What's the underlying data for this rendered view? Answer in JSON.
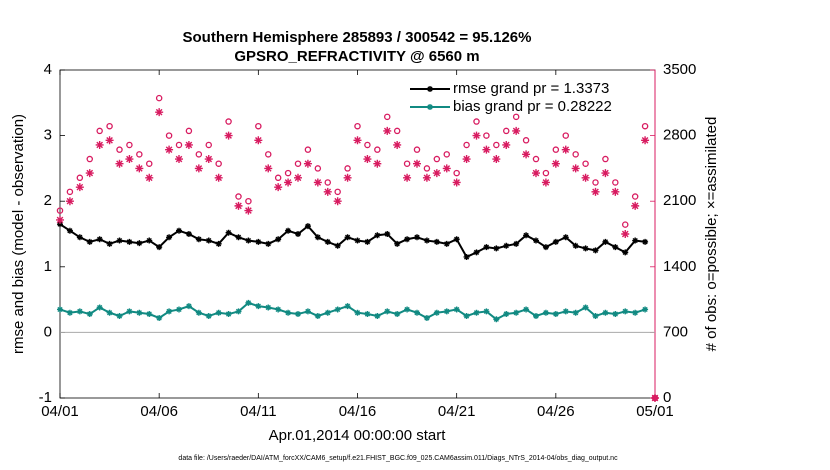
{
  "chart_data": {
    "type": "line",
    "title": "Southern Hemisphere 285893 / 300542 = 95.126%",
    "subtitle": "GPSRO_REFRACTIVITY @ 6560 m",
    "xlabel": "Apr.01,2014 00:00:00 start",
    "ylabel": "rmse and bias (model - observation)",
    "y2label": "# of obs: o=possible; ×=assimilated",
    "footnote": "data file: /Users/raeder/DAI/ATM_forcXX/CAM6_setup/f.e21.FHIST_BGC.f09_025.CAM6assim.011/Diags_NTrS_2014-04/obs_diag_output.nc",
    "x": [
      0,
      0.5,
      1,
      1.5,
      2,
      2.5,
      3,
      3.5,
      4,
      4.5,
      5,
      5.5,
      6,
      6.5,
      7,
      7.5,
      8,
      8.5,
      9,
      9.5,
      10,
      10.5,
      11,
      11.5,
      12,
      12.5,
      13,
      13.5,
      14,
      14.5,
      15,
      15.5,
      16,
      16.5,
      17,
      17.5,
      18,
      18.5,
      19,
      19.5,
      20,
      20.5,
      21,
      21.5,
      22,
      22.5,
      23,
      23.5,
      24,
      24.5,
      25,
      25.5,
      26,
      26.5,
      27,
      27.5,
      28,
      28.5,
      29,
      29.5,
      30
    ],
    "xlim": [
      0,
      30
    ],
    "xticks": [
      {
        "value": 0,
        "label": "04/01"
      },
      {
        "value": 5,
        "label": "04/06"
      },
      {
        "value": 10,
        "label": "04/11"
      },
      {
        "value": 15,
        "label": "04/16"
      },
      {
        "value": 20,
        "label": "04/21"
      },
      {
        "value": 25,
        "label": "04/26"
      },
      {
        "value": 30,
        "label": "05/01"
      }
    ],
    "ylim": [
      -1,
      4
    ],
    "yticks": [
      -1,
      0,
      1,
      2,
      3,
      4
    ],
    "y2lim": [
      0,
      3500
    ],
    "y2ticks": [
      0,
      700,
      1400,
      2100,
      2800,
      3500
    ],
    "zero_line_color": "#aaaaaa",
    "y2_color": "#d81b60",
    "legend_color": "#1a5cd8",
    "legend": "upper right",
    "series": [
      {
        "name": "rmse grand pr = 1.3373",
        "color": "#000000",
        "marker": "*",
        "values": [
          1.65,
          1.55,
          1.45,
          1.38,
          1.42,
          1.35,
          1.4,
          1.38,
          1.36,
          1.4,
          1.3,
          1.45,
          1.55,
          1.5,
          1.42,
          1.4,
          1.35,
          1.52,
          1.45,
          1.4,
          1.38,
          1.35,
          1.42,
          1.55,
          1.5,
          1.62,
          1.45,
          1.38,
          1.32,
          1.45,
          1.4,
          1.38,
          1.48,
          1.5,
          1.35,
          1.42,
          1.45,
          1.4,
          1.38,
          1.35,
          1.42,
          1.15,
          1.22,
          1.3,
          1.28,
          1.32,
          1.35,
          1.48,
          1.4,
          1.3,
          1.38,
          1.45,
          1.32,
          1.28,
          1.25,
          1.38,
          1.3,
          1.22,
          1.4,
          1.38,
          null
        ]
      },
      {
        "name": "bias grand pr = 0.28222",
        "color": "#118a82",
        "marker": "*",
        "values": [
          0.35,
          0.3,
          0.32,
          0.28,
          0.38,
          0.3,
          0.25,
          0.32,
          0.3,
          0.28,
          0.22,
          0.32,
          0.35,
          0.4,
          0.3,
          0.25,
          0.3,
          0.28,
          0.32,
          0.45,
          0.4,
          0.38,
          0.35,
          0.3,
          0.28,
          0.32,
          0.25,
          0.3,
          0.35,
          0.4,
          0.3,
          0.28,
          0.25,
          0.32,
          0.28,
          0.35,
          0.3,
          0.22,
          0.3,
          0.32,
          0.35,
          0.25,
          0.3,
          0.32,
          0.2,
          0.28,
          0.3,
          0.35,
          0.25,
          0.3,
          0.28,
          0.32,
          0.3,
          0.38,
          0.25,
          0.3,
          0.28,
          0.32,
          0.3,
          0.35,
          null
        ]
      },
      {
        "color": "#d81b60",
        "marker": "o",
        "axis": "y2",
        "values": [
          2000,
          2200,
          2350,
          2550,
          2850,
          2900,
          2650,
          2700,
          2600,
          2500,
          3200,
          2800,
          2700,
          2850,
          2600,
          2700,
          2500,
          2950,
          2150,
          2100,
          2900,
          2600,
          2350,
          2400,
          2500,
          2650,
          2450,
          2300,
          2200,
          2450,
          2900,
          2700,
          2650,
          3000,
          2850,
          2500,
          2650,
          2450,
          2550,
          2600,
          2400,
          2700,
          2950,
          2800,
          2700,
          2850,
          3000,
          2750,
          2550,
          2400,
          2650,
          2800,
          2600,
          2500,
          2300,
          2550,
          2300,
          1850,
          2150,
          2900,
          0
        ]
      },
      {
        "color": "#d81b60",
        "marker": "*",
        "axis": "y2",
        "values": [
          1900,
          2100,
          2250,
          2400,
          2700,
          2750,
          2500,
          2550,
          2450,
          2350,
          3050,
          2650,
          2550,
          2700,
          2450,
          2550,
          2350,
          2800,
          2050,
          2000,
          2750,
          2450,
          2250,
          2300,
          2350,
          2500,
          2300,
          2200,
          2100,
          2350,
          2750,
          2550,
          2500,
          2850,
          2700,
          2350,
          2500,
          2350,
          2400,
          2450,
          2300,
          2550,
          2800,
          2650,
          2550,
          2700,
          2850,
          2600,
          2400,
          2300,
          2500,
          2650,
          2450,
          2350,
          2200,
          2400,
          2200,
          1750,
          2050,
          2750,
          0
        ]
      }
    ]
  }
}
